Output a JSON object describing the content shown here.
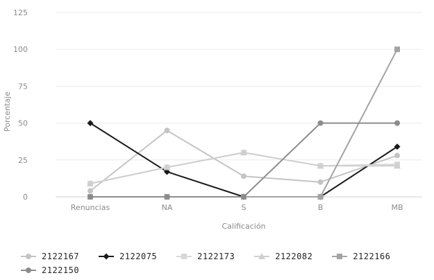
{
  "chart_data": {
    "type": "line",
    "title": "",
    "xlabel": "Calificación",
    "ylabel": "Porcentaje",
    "ylim": [
      0,
      125
    ],
    "yticks": [
      0,
      25,
      50,
      75,
      100,
      125
    ],
    "categories": [
      "Renuncias",
      "NA",
      "S",
      "B",
      "MB"
    ],
    "grid": true,
    "legend_position": "bottom",
    "series": [
      {
        "name": "2122167",
        "color": "#c4c4c4",
        "marker": "circle",
        "values": [
          4,
          45,
          14,
          10,
          28
        ]
      },
      {
        "name": "2122075",
        "color": "#1a1a1a",
        "marker": "diamond",
        "values": [
          50,
          17,
          0,
          0,
          34
        ]
      },
      {
        "name": "2122173",
        "color": "#d6d6d6",
        "marker": "square",
        "values": [
          9,
          20,
          30,
          21,
          22
        ]
      },
      {
        "name": "2122082",
        "color": "#cfcfcf",
        "marker": "triangle",
        "values": [
          9,
          20,
          30,
          21,
          21
        ]
      },
      {
        "name": "2122166",
        "color": "#a3a3a3",
        "marker": "square",
        "values": [
          0,
          0,
          0,
          0,
          100
        ]
      },
      {
        "name": "2122150",
        "color": "#8c8c8c",
        "marker": "circle",
        "values": [
          0,
          0,
          0,
          50,
          50
        ]
      }
    ]
  }
}
